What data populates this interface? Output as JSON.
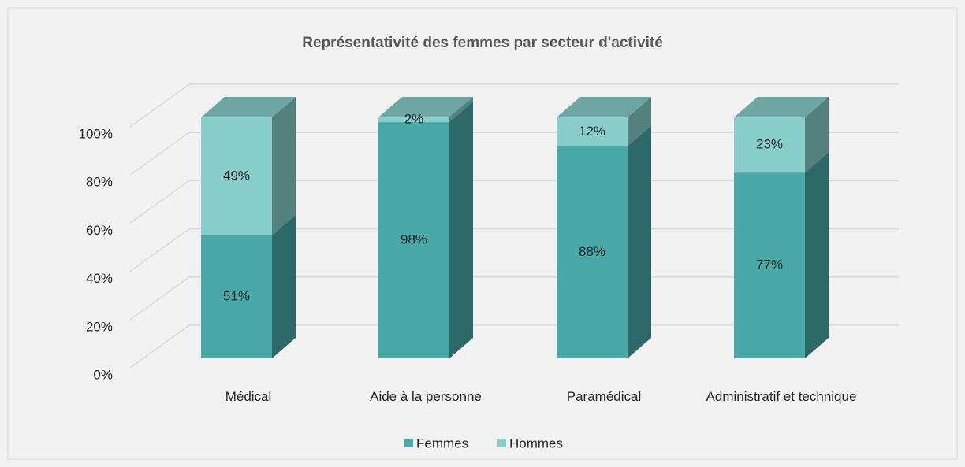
{
  "chart_data": {
    "type": "bar3d_stacked",
    "title": "Représentativité des femmes par secteur d'activité",
    "categories": [
      "Médical",
      "Aide à la personne",
      "Paramédical",
      "Administratif et technique"
    ],
    "series": [
      {
        "name": "Femmes",
        "color": "#48a9a8",
        "values": [
          51,
          98,
          88,
          77
        ],
        "value_labels": [
          "51%",
          "98%",
          "88%",
          "77%"
        ]
      },
      {
        "name": "Hommes",
        "color": "#88cfcc",
        "values": [
          49,
          2,
          12,
          23
        ],
        "value_labels": [
          "49%",
          "2%",
          "12%",
          "23%"
        ]
      }
    ],
    "ylim": [
      0,
      100
    ],
    "yticks": [
      {
        "value": 0,
        "label": "0%"
      },
      {
        "value": 20,
        "label": "20%"
      },
      {
        "value": 40,
        "label": "40%"
      },
      {
        "value": 60,
        "label": "60%"
      },
      {
        "value": 80,
        "label": "80%"
      },
      {
        "value": 100,
        "label": "100%"
      }
    ],
    "grid": true,
    "legend": "bottom"
  }
}
